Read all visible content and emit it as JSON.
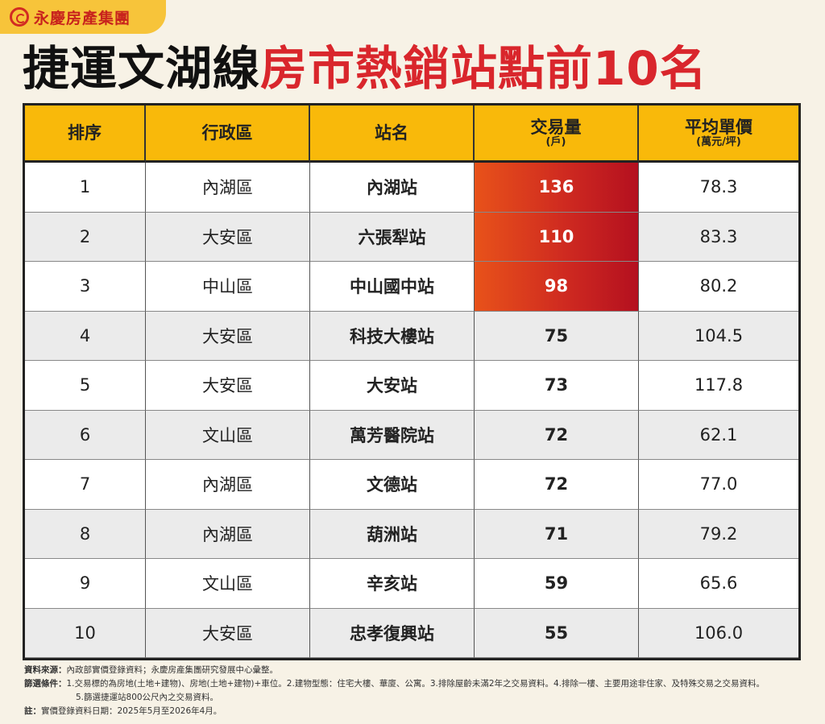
{
  "brand": {
    "name": "永慶房產集團"
  },
  "title": {
    "part1": "捷運文湖線",
    "part2": "房市熱銷站點前10名"
  },
  "table": {
    "headers": {
      "rank": "排序",
      "district": "行政區",
      "station": "站名",
      "volume": "交易量",
      "volume_unit": "(戶)",
      "price": "平均單價",
      "price_unit": "(萬元/坪)"
    },
    "rows": [
      {
        "rank": "1",
        "district": "內湖區",
        "station": "內湖站",
        "volume": "136",
        "price": "78.3"
      },
      {
        "rank": "2",
        "district": "大安區",
        "station": "六張犁站",
        "volume": "110",
        "price": "83.3"
      },
      {
        "rank": "3",
        "district": "中山區",
        "station": "中山國中站",
        "volume": "98",
        "price": "80.2"
      },
      {
        "rank": "4",
        "district": "大安區",
        "station": "科技大樓站",
        "volume": "75",
        "price": "104.5"
      },
      {
        "rank": "5",
        "district": "大安區",
        "station": "大安站",
        "volume": "73",
        "price": "117.8"
      },
      {
        "rank": "6",
        "district": "文山區",
        "station": "萬芳醫院站",
        "volume": "72",
        "price": "62.1"
      },
      {
        "rank": "7",
        "district": "內湖區",
        "station": "文德站",
        "volume": "72",
        "price": "77.0"
      },
      {
        "rank": "8",
        "district": "內湖區",
        "station": "葫洲站",
        "volume": "71",
        "price": "79.2"
      },
      {
        "rank": "9",
        "district": "文山區",
        "station": "辛亥站",
        "volume": "59",
        "price": "65.6"
      },
      {
        "rank": "10",
        "district": "大安區",
        "station": "忠孝復興站",
        "volume": "55",
        "price": "106.0"
      }
    ]
  },
  "footer": {
    "source_label": "資料來源：",
    "source_text": "內政部實價登錄資料；永慶房產集團研究發展中心彙整。",
    "filter_label": "篩選條件：",
    "filter_text": "1.交易標的為房地(土地+建物)、房地(土地+建物)+車位。2.建物型態：住宅大樓、華廈、公寓。3.排除屋齡未滿2年之交易資料。4.排除一樓、主要用途非住家、及特殊交易之交易資料。",
    "filter_text2": "5.篩選捷運站800公尺內之交易資料。",
    "note_label": "註：",
    "note_text": "實價登錄資料日期：2025年5月至2026年4月。"
  },
  "colors": {
    "header": "#f9b90a",
    "title_red": "#d9262c",
    "hot_start": "#e8521a",
    "hot_end": "#b4101f"
  }
}
